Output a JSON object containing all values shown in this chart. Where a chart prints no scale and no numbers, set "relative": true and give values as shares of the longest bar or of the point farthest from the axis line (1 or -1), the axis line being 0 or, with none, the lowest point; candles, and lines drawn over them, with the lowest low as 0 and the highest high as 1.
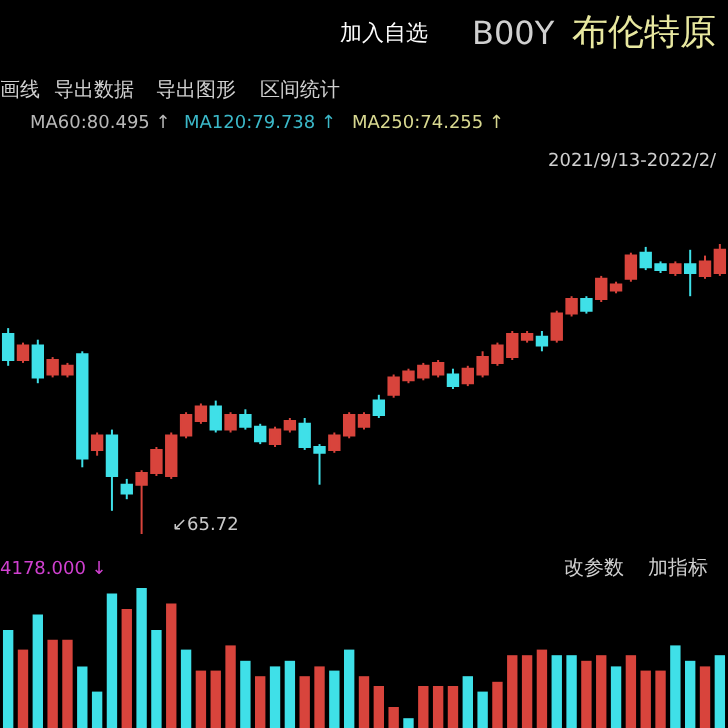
{
  "chart_data": [
    {
      "type": "candlestick",
      "relative": true,
      "tick_labels": false,
      "categories": [
        null,
        null,
        null,
        null,
        null,
        null,
        null,
        null,
        null,
        null,
        null,
        null,
        null,
        null,
        null,
        null,
        null,
        null,
        null,
        null,
        null,
        null,
        null,
        null,
        null,
        null,
        null,
        null,
        null,
        null,
        null,
        null,
        null,
        null,
        null,
        null,
        null,
        null,
        null,
        null,
        null,
        null,
        null,
        null,
        null,
        null,
        null,
        null,
        null
      ],
      "ohlc": [
        [
          0.69,
          0.71,
          0.58,
          0.6
        ],
        [
          0.6,
          0.66,
          0.59,
          0.65
        ],
        [
          0.65,
          0.67,
          0.52,
          0.54
        ],
        [
          0.55,
          0.61,
          0.54,
          0.6
        ],
        [
          0.55,
          0.59,
          0.54,
          0.58
        ],
        [
          0.62,
          0.63,
          0.23,
          0.26
        ],
        [
          0.29,
          0.35,
          0.27,
          0.34
        ],
        [
          0.34,
          0.36,
          0.08,
          0.2
        ],
        [
          0.17,
          0.19,
          0.12,
          0.14
        ],
        [
          0.17,
          0.22,
          0.0,
          0.21
        ],
        [
          0.21,
          0.3,
          0.2,
          0.29
        ],
        [
          0.2,
          0.35,
          0.19,
          0.34
        ],
        [
          0.34,
          0.42,
          0.33,
          0.41
        ],
        [
          0.39,
          0.45,
          0.38,
          0.44
        ],
        [
          0.44,
          0.46,
          0.35,
          0.36
        ],
        [
          0.36,
          0.42,
          0.35,
          0.41
        ],
        [
          0.41,
          0.43,
          0.36,
          0.37
        ],
        [
          0.37,
          0.38,
          0.31,
          0.32
        ],
        [
          0.31,
          0.37,
          0.3,
          0.36
        ],
        [
          0.36,
          0.4,
          0.35,
          0.39
        ],
        [
          0.38,
          0.4,
          0.29,
          0.3
        ],
        [
          0.3,
          0.31,
          0.17,
          0.28
        ],
        [
          0.29,
          0.35,
          0.28,
          0.34
        ],
        [
          0.34,
          0.42,
          0.33,
          0.41
        ],
        [
          0.37,
          0.42,
          0.36,
          0.41
        ],
        [
          0.46,
          0.48,
          0.4,
          0.41
        ],
        [
          0.48,
          0.55,
          0.47,
          0.54
        ],
        [
          0.53,
          0.57,
          0.52,
          0.56
        ],
        [
          0.54,
          0.59,
          0.53,
          0.58
        ],
        [
          0.55,
          0.6,
          0.54,
          0.59
        ],
        [
          0.55,
          0.57,
          0.5,
          0.51
        ],
        [
          0.52,
          0.58,
          0.51,
          0.57
        ],
        [
          0.55,
          0.63,
          0.54,
          0.61
        ],
        [
          0.59,
          0.66,
          0.58,
          0.65
        ],
        [
          0.61,
          0.7,
          0.6,
          0.69
        ],
        [
          0.67,
          0.7,
          0.66,
          0.69
        ],
        [
          0.68,
          0.7,
          0.63,
          0.65
        ],
        [
          0.67,
          0.77,
          0.66,
          0.76
        ],
        [
          0.76,
          0.82,
          0.75,
          0.81
        ],
        [
          0.81,
          0.82,
          0.76,
          0.77
        ],
        [
          0.81,
          0.89,
          0.8,
          0.88
        ],
        [
          0.84,
          0.87,
          0.83,
          0.86
        ],
        [
          0.88,
          0.97,
          0.87,
          0.96
        ],
        [
          0.97,
          0.99,
          0.91,
          0.92
        ],
        [
          0.93,
          0.94,
          0.9,
          0.91
        ],
        [
          0.9,
          0.94,
          0.89,
          0.93
        ],
        [
          0.93,
          0.98,
          0.82,
          0.9
        ],
        [
          0.89,
          0.96,
          0.88,
          0.94
        ],
        [
          0.9,
          1.0,
          0.89,
          0.98
        ]
      ],
      "colors": [
        "#3fe0e8",
        "#d8443c",
        "#3fe0e8",
        "#d8443c",
        "#d8443c",
        "#3fe0e8",
        "#d8443c",
        "#3fe0e8",
        "#3fe0e8",
        "#d8443c",
        "#d8443c",
        "#d8443c",
        "#d8443c",
        "#d8443c",
        "#3fe0e8",
        "#d8443c",
        "#3fe0e8",
        "#3fe0e8",
        "#d8443c",
        "#d8443c",
        "#3fe0e8",
        "#3fe0e8",
        "#d8443c",
        "#d8443c",
        "#d8443c",
        "#3fe0e8",
        "#d8443c",
        "#d8443c",
        "#d8443c",
        "#d8443c",
        "#3fe0e8",
        "#d8443c",
        "#d8443c",
        "#d8443c",
        "#d8443c",
        "#d8443c",
        "#3fe0e8",
        "#d8443c",
        "#d8443c",
        "#3fe0e8",
        "#d8443c",
        "#d8443c",
        "#d8443c",
        "#3fe0e8",
        "#3fe0e8",
        "#d8443c",
        "#3fe0e8",
        "#d8443c",
        "#d8443c"
      ],
      "annotations": [
        "加入自选",
        "B00Y",
        "布伦特原",
        "画线",
        "导出数据",
        "导出图形",
        "区间统计",
        "MA60:80.495 ↑",
        "MA120:79.738 ↑",
        "MA250:74.255 ↑",
        "2021/9/13-2022/2/",
        "↙65.72"
      ]
    },
    {
      "type": "bar",
      "relative": true,
      "tick_labels": false,
      "categories": [
        null,
        null,
        null,
        null,
        null,
        null,
        null,
        null,
        null,
        null,
        null,
        null,
        null,
        null,
        null,
        null,
        null,
        null,
        null,
        null,
        null,
        null,
        null,
        null,
        null,
        null,
        null,
        null,
        null,
        null,
        null,
        null,
        null,
        null,
        null,
        null,
        null,
        null,
        null,
        null,
        null,
        null,
        null,
        null,
        null,
        null,
        null,
        null,
        null
      ],
      "values": [
        0.7,
        0.56,
        0.81,
        0.63,
        0.63,
        0.44,
        0.26,
        0.96,
        0.85,
        1.0,
        0.7,
        0.89,
        0.56,
        0.41,
        0.41,
        0.59,
        0.48,
        0.37,
        0.44,
        0.48,
        0.37,
        0.44,
        0.41,
        0.56,
        0.37,
        0.3,
        0.15,
        0.07,
        0.3,
        0.3,
        0.3,
        0.37,
        0.26,
        0.33,
        0.52,
        0.52,
        0.56,
        0.52,
        0.52,
        0.48,
        0.52,
        0.44,
        0.52,
        0.41,
        0.41,
        0.59,
        0.48,
        0.44,
        0.52
      ],
      "colors": [
        "#3fe0e8",
        "#d8443c",
        "#3fe0e8",
        "#d8443c",
        "#d8443c",
        "#3fe0e8",
        "#3fe0e8",
        "#3fe0e8",
        "#d8443c",
        "#3fe0e8",
        "#3fe0e8",
        "#d8443c",
        "#3fe0e8",
        "#d8443c",
        "#d8443c",
        "#d8443c",
        "#3fe0e8",
        "#d8443c",
        "#3fe0e8",
        "#3fe0e8",
        "#d8443c",
        "#d8443c",
        "#3fe0e8",
        "#3fe0e8",
        "#d8443c",
        "#d8443c",
        "#d8443c",
        "#3fe0e8",
        "#d8443c",
        "#d8443c",
        "#d8443c",
        "#3fe0e8",
        "#3fe0e8",
        "#d8443c",
        "#d8443c",
        "#d8443c",
        "#d8443c",
        "#3fe0e8",
        "#3fe0e8",
        "#d8443c",
        "#d8443c",
        "#3fe0e8",
        "#d8443c",
        "#d8443c",
        "#d8443c",
        "#3fe0e8",
        "#3fe0e8",
        "#d8443c",
        "#3fe0e8"
      ],
      "annotations": [
        "4178.000 ↓",
        "改参数",
        "加指标"
      ]
    }
  ]
}
